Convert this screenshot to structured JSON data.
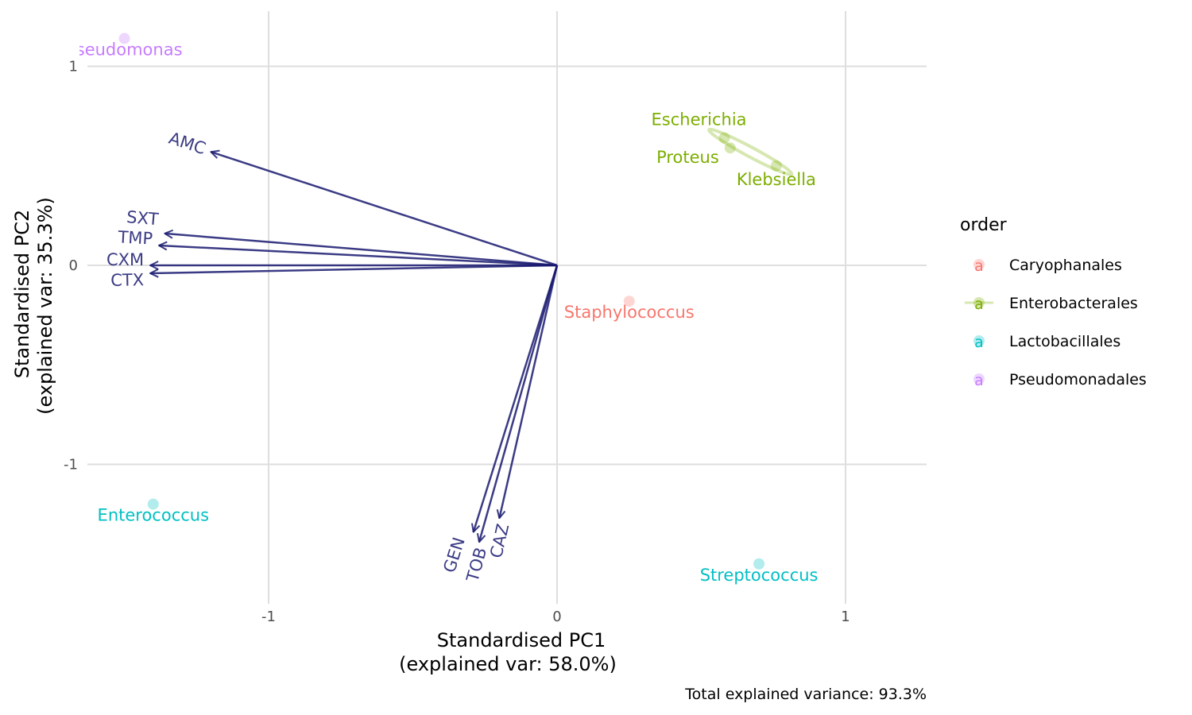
{
  "chart_data": {
    "type": "scatter",
    "subtype": "pca-biplot",
    "xlabel": [
      "Standardised PC1",
      "(explained var: 58.0%)"
    ],
    "ylabel": [
      "Standardised PC2",
      "(explained var: 35.3%)"
    ],
    "caption": "Total explained variance: 93.3%",
    "xlim": [
      -1.7,
      1.27
    ],
    "ylim": [
      -1.7,
      1.28
    ],
    "xticks": [
      {
        "v": -1,
        "label": "-1"
      },
      {
        "v": 0,
        "label": "0"
      },
      {
        "v": 1,
        "label": "1"
      }
    ],
    "yticks": [
      {
        "v": 1,
        "label": "1"
      },
      {
        "v": 0,
        "label": "0"
      },
      {
        "v": -1,
        "label": "-1"
      }
    ],
    "grid": true,
    "legend": {
      "title": "order",
      "placement": "right",
      "entries": [
        {
          "name": "Caryophanales",
          "color": "#F8766D"
        },
        {
          "name": "Enterobacterales",
          "color": "#7CAE00"
        },
        {
          "name": "Lactobacillales",
          "color": "#00BFC4"
        },
        {
          "name": "Pseudomonadales",
          "color": "#C77CFF"
        }
      ],
      "key_glyph": "a"
    },
    "points": [
      {
        "label": "Pseudomonas",
        "order": "Pseudomonadales",
        "x": -1.5,
        "y": 1.14
      },
      {
        "label": "Escherichia",
        "order": "Enterobacterales",
        "x": 0.58,
        "y": 0.64
      },
      {
        "label": "Proteus",
        "order": "Enterobacterales",
        "x": 0.6,
        "y": 0.59
      },
      {
        "label": "Klebsiella",
        "order": "Enterobacterales",
        "x": 0.76,
        "y": 0.5
      },
      {
        "label": "Staphylococcus",
        "order": "Caryophanales",
        "x": 0.25,
        "y": -0.18
      },
      {
        "label": "Enterococcus",
        "order": "Lactobacillales",
        "x": -1.4,
        "y": -1.2
      },
      {
        "label": "Streptococcus",
        "order": "Lactobacillales",
        "x": 0.7,
        "y": -1.5
      }
    ],
    "arrow_color": "#191970",
    "arrows": [
      {
        "label": "AMC",
        "x": -1.2,
        "y": 0.57
      },
      {
        "label": "SXT",
        "x": -1.36,
        "y": 0.16
      },
      {
        "label": "TMP",
        "x": -1.38,
        "y": 0.1
      },
      {
        "label": "CXM",
        "x": -1.41,
        "y": 0.0
      },
      {
        "label": "CTX",
        "x": -1.41,
        "y": -0.04
      },
      {
        "label": "GEN",
        "x": -0.29,
        "y": -1.34
      },
      {
        "label": "TOB",
        "x": -0.27,
        "y": -1.39
      },
      {
        "label": "CAZ",
        "x": -0.2,
        "y": -1.27
      }
    ]
  }
}
